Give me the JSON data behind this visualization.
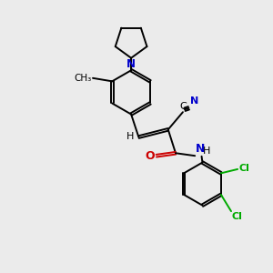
{
  "background_color": "#ebebeb",
  "bond_color": "#000000",
  "nitrogen_color": "#0000cc",
  "oxygen_color": "#cc0000",
  "chlorine_color": "#00aa00",
  "figsize": [
    3.0,
    3.0
  ],
  "dpi": 100,
  "xlim": [
    0,
    10
  ],
  "ylim": [
    0,
    10
  ]
}
